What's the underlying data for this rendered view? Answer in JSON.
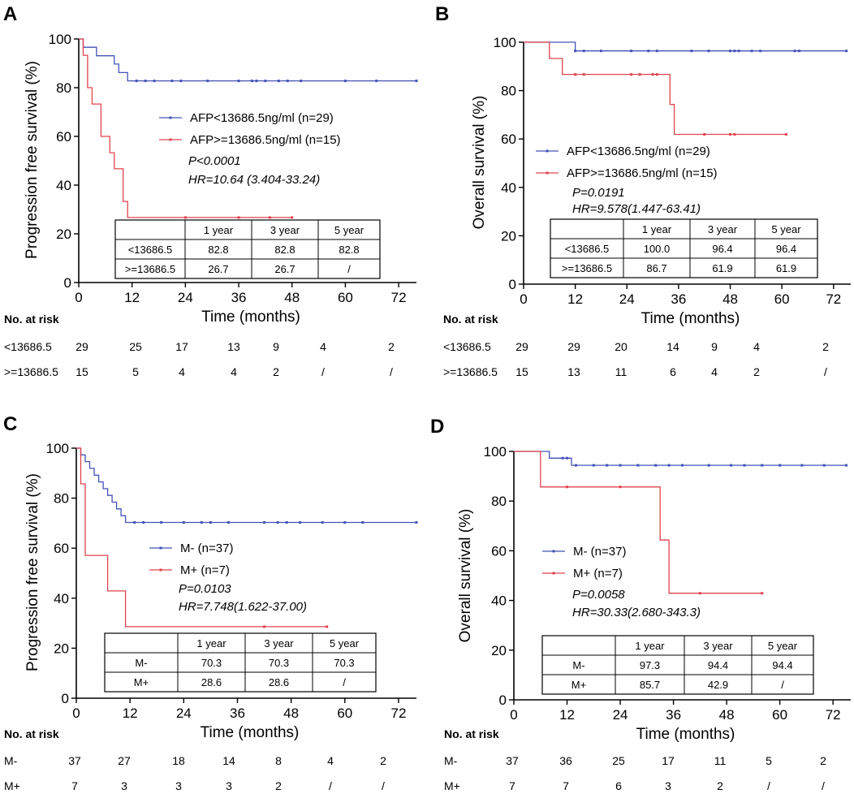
{
  "colors": {
    "blue": "#4353b7",
    "red": "#e0434f",
    "axis": "#000000"
  },
  "chart_data": [
    {
      "type": "line",
      "panel": "A",
      "ylabel": "Progression free survival  (%)",
      "xlabel": "Time (months)",
      "xlim": [
        0,
        76
      ],
      "ylim": [
        0,
        100
      ],
      "x_ticks": [
        "0",
        "12",
        "24",
        "36",
        "48",
        "60",
        "72"
      ],
      "y_ticks": [
        "0",
        "20",
        "40",
        "60",
        "80",
        "100"
      ],
      "series": [
        {
          "name": "AFP<13686.5ng/ml (n=29)",
          "color": "blue",
          "x": [
            0,
            1,
            1,
            4,
            4,
            8,
            8,
            9,
            9,
            11,
            11,
            76
          ],
          "y": [
            100,
            100,
            96.6,
            96.6,
            93.1,
            93.1,
            89.7,
            89.7,
            86.2,
            86.2,
            82.8,
            82.8
          ],
          "censor": [
            13,
            15,
            17,
            21,
            23,
            29,
            36,
            39,
            40,
            42,
            45,
            47,
            50,
            60,
            67,
            76
          ]
        },
        {
          "name": "AFP>=13686.5ng/ml (n=15)",
          "color": "red",
          "x": [
            0,
            1,
            1,
            2,
            2,
            3,
            3,
            5,
            5,
            7,
            7,
            8,
            8,
            10,
            10,
            11,
            11,
            48
          ],
          "y": [
            100,
            100,
            93.3,
            93.3,
            80,
            80,
            73.3,
            73.3,
            60,
            60,
            53.3,
            53.3,
            46.7,
            46.7,
            33.3,
            33.3,
            26.7,
            26.7
          ],
          "censor": [
            24,
            36,
            43,
            48
          ]
        }
      ],
      "stats": {
        "p": "P<0.0001",
        "hr": "HR=10.64 (3.404-33.24)"
      },
      "table": {
        "header": [
          "",
          "1 year",
          "3 year",
          "5 year"
        ],
        "rows": [
          [
            "<13686.5",
            "82.8",
            "82.8",
            "82.8"
          ],
          [
            ">=13686.5",
            "26.7",
            "26.7",
            "/"
          ]
        ]
      },
      "risk": {
        "title": "No. at risk",
        "rows": [
          {
            "label": "<13686.5",
            "values": [
              "29",
              "25",
              "17",
              "13",
              "9",
              "4",
              "2"
            ]
          },
          {
            "label": ">=13686.5",
            "values": [
              "15",
              "5",
              "4",
              "4",
              "2",
              "/",
              "/"
            ]
          }
        ]
      }
    },
    {
      "type": "line",
      "panel": "B",
      "ylabel": "Overall survival (%)",
      "xlabel": "Time (months)",
      "xlim": [
        0,
        76
      ],
      "ylim": [
        0,
        100
      ],
      "x_ticks": [
        "0",
        "12",
        "24",
        "36",
        "48",
        "60",
        "72"
      ],
      "y_ticks": [
        "0",
        "20",
        "40",
        "60",
        "80",
        "100"
      ],
      "series": [
        {
          "name": "AFP<13686.5ng/ml (n=29)",
          "color": "blue",
          "x": [
            0,
            12,
            12,
            75
          ],
          "y": [
            100,
            100,
            96.4,
            96.4
          ],
          "censor": [
            12,
            14,
            18,
            25,
            29,
            31,
            39,
            43,
            48,
            49,
            50,
            53,
            55,
            63,
            64,
            75
          ]
        },
        {
          "name": "AFP>=13686.5ng/ml (n=15)",
          "color": "red",
          "x": [
            0,
            6,
            6,
            9,
            9,
            34,
            34,
            35,
            35,
            61
          ],
          "y": [
            100,
            100,
            93.3,
            93.3,
            86.7,
            86.7,
            74.3,
            74.3,
            61.9,
            61.9
          ],
          "censor": [
            12,
            14,
            25,
            27,
            30,
            31,
            42,
            48,
            49,
            61
          ]
        }
      ],
      "stats": {
        "p": "P=0.0191",
        "hr": "HR=9.578(1.447-63.41)"
      },
      "table": {
        "header": [
          "",
          "1 year",
          "3 year",
          "5 year"
        ],
        "rows": [
          [
            "<13686.5",
            "100.0",
            "96.4",
            "96.4"
          ],
          [
            ">=13686.5",
            "86.7",
            "61.9",
            "61.9"
          ]
        ]
      },
      "risk": {
        "title": "No. at risk",
        "rows": [
          {
            "label": "<13686.5",
            "values": [
              "29",
              "29",
              "20",
              "14",
              "9",
              "4",
              "2"
            ]
          },
          {
            "label": ">=13686.5",
            "values": [
              "15",
              "13",
              "11",
              "6",
              "4",
              "2",
              "/"
            ]
          }
        ]
      }
    },
    {
      "type": "line",
      "panel": "C",
      "ylabel": "Progression free survival  (%)",
      "xlabel": "Time (months)",
      "xlim": [
        0,
        76
      ],
      "ylim": [
        0,
        100
      ],
      "x_ticks": [
        "0",
        "12",
        "24",
        "36",
        "48",
        "60",
        "72"
      ],
      "y_ticks": [
        "0",
        "20",
        "40",
        "60",
        "80",
        "100"
      ],
      "series": [
        {
          "name": "M- (n=37)",
          "color": "blue",
          "x": [
            0,
            1,
            1,
            2,
            2,
            3,
            3,
            4,
            4,
            5,
            5,
            6,
            6,
            7,
            7,
            8,
            8,
            9,
            9,
            10,
            10,
            11,
            11,
            76
          ],
          "y": [
            100,
            100,
            97.3,
            97.3,
            94.6,
            94.6,
            91.9,
            91.9,
            89.2,
            89.2,
            86.5,
            86.5,
            83.8,
            83.8,
            81.1,
            81.1,
            78.4,
            78.4,
            75.7,
            75.7,
            73,
            73,
            70.3,
            70.3
          ],
          "censor": [
            13,
            15,
            19,
            24,
            28,
            30,
            34,
            42,
            45,
            47,
            50,
            55,
            60,
            64,
            76
          ]
        },
        {
          "name": "M+ (n=7)",
          "color": "red",
          "x": [
            0,
            1,
            1,
            2,
            2,
            7,
            7,
            11,
            11,
            56
          ],
          "y": [
            100,
            100,
            85.7,
            85.7,
            57.1,
            57.1,
            42.9,
            42.9,
            28.6,
            28.6
          ],
          "censor": [
            42,
            56
          ]
        }
      ],
      "stats": {
        "p": "P=0.0103",
        "hr": "HR=7.748(1.622-37.00)"
      },
      "table": {
        "header": [
          "",
          "1 year",
          "3 year",
          "5 year"
        ],
        "rows": [
          [
            "M-",
            "70.3",
            "70.3",
            "70.3"
          ],
          [
            "M+",
            "28.6",
            "28.6",
            "/"
          ]
        ]
      },
      "risk": {
        "title": "No. at risk",
        "rows": [
          {
            "label": "M-",
            "values": [
              "37",
              "27",
              "18",
              "14",
              "8",
              "4",
              "2"
            ]
          },
          {
            "label": "M+",
            "values": [
              "7",
              "3",
              "3",
              "3",
              "2",
              "/",
              "/"
            ]
          }
        ]
      }
    },
    {
      "type": "line",
      "panel": "D",
      "ylabel": "Overall survival (%)",
      "xlabel": "Time (months)",
      "xlim": [
        0,
        76
      ],
      "ylim": [
        0,
        100
      ],
      "x_ticks": [
        "0",
        "12",
        "24",
        "36",
        "48",
        "60",
        "72"
      ],
      "y_ticks": [
        "0",
        "20",
        "40",
        "60",
        "80",
        "100"
      ],
      "series": [
        {
          "name": "M- (n=37)",
          "color": "blue",
          "x": [
            0,
            8,
            8,
            12,
            12,
            13,
            13,
            75
          ],
          "y": [
            100,
            100,
            97.3,
            97.3,
            97.3,
            97.3,
            94.4,
            94.4
          ],
          "censor": [
            11,
            12,
            14,
            18,
            21,
            24,
            28,
            32,
            35,
            38,
            44,
            49,
            52,
            56,
            60,
            65,
            70,
            75
          ]
        },
        {
          "name": "M+ (n=7)",
          "color": "red",
          "x": [
            0,
            6,
            6,
            33,
            33,
            35,
            35,
            56
          ],
          "y": [
            100,
            100,
            85.7,
            85.7,
            64.3,
            64.3,
            42.9,
            42.9
          ],
          "censor": [
            12,
            24,
            42,
            56
          ]
        }
      ],
      "stats": {
        "p": "P=0.0058",
        "hr": "HR=30.33(2.680-343.3)"
      },
      "table": {
        "header": [
          "",
          "1 year",
          "3 year",
          "5 year"
        ],
        "rows": [
          [
            "M-",
            "97.3",
            "94.4",
            "94.4"
          ],
          [
            "M+",
            "85.7",
            "42.9",
            "/"
          ]
        ]
      },
      "risk": {
        "title": "No. at risk",
        "rows": [
          {
            "label": "M-",
            "values": [
              "37",
              "36",
              "25",
              "17",
              "11",
              "5",
              "2"
            ]
          },
          {
            "label": "M+",
            "values": [
              "7",
              "7",
              "6",
              "3",
              "2",
              "/",
              "/"
            ]
          }
        ]
      }
    }
  ]
}
